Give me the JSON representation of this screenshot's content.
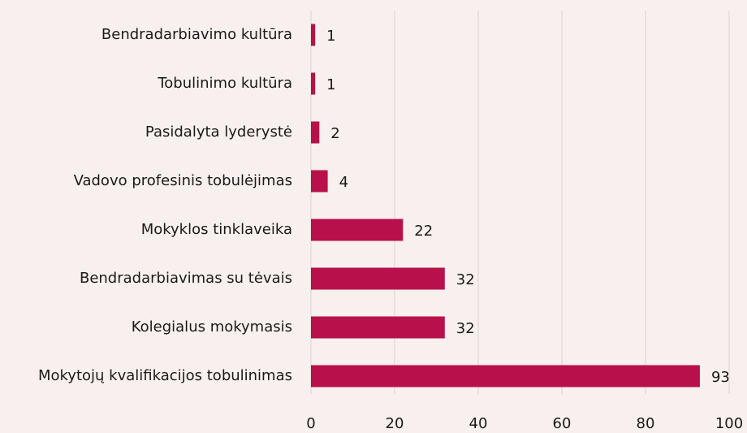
{
  "chart_data": {
    "type": "bar",
    "orientation": "horizontal",
    "categories": [
      "Bendradarbiavimo kultūra",
      "Tobulinimo kultūra",
      "Pasidalyta lyderystė",
      "Vadovo profesinis tobulėjimas",
      "Mokyklos tinklaveika",
      "Bendradarbiavimas su tėvais",
      "Kolegialus mokymasis",
      "Mokytojų kvalifikacijos tobulinimas"
    ],
    "values": [
      1,
      1,
      2,
      4,
      22,
      32,
      32,
      93
    ],
    "color": "#b8104a",
    "xlim": [
      0,
      100
    ],
    "xticks": [
      0,
      20,
      40,
      60,
      80,
      100
    ],
    "grid": true
  }
}
